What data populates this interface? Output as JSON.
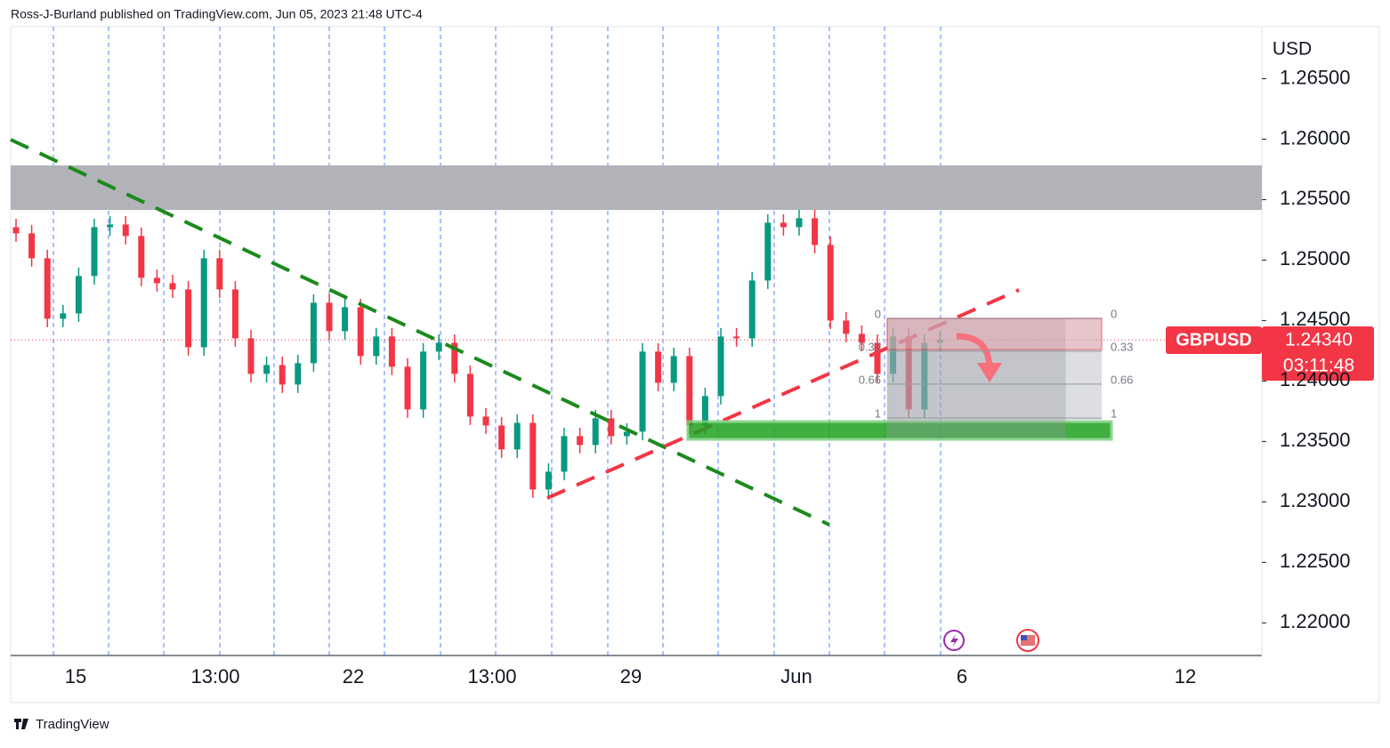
{
  "header": "Ross-J-Burland published on TradingView.com, Jun 05, 2023 21:48 UTC-4",
  "footer": "TradingView",
  "chart_data": {
    "type": "candlestick",
    "currency": "USD",
    "symbol": "GBPUSD",
    "up_color": "#089981",
    "down_color": "#f23645",
    "ylim": [
      1.2173,
      1.2693
    ],
    "yticks": [
      {
        "value": 1.22,
        "label": "1.22000"
      },
      {
        "value": 1.225,
        "label": "1.22500"
      },
      {
        "value": 1.23,
        "label": "1.23000"
      },
      {
        "value": 1.235,
        "label": "1.23500"
      },
      {
        "value": 1.24,
        "label": "1.24000"
      },
      {
        "value": 1.245,
        "label": "1.24500"
      },
      {
        "value": 1.25,
        "label": "1.25000"
      },
      {
        "value": 1.255,
        "label": "1.25500"
      },
      {
        "value": 1.26,
        "label": "1.26000"
      },
      {
        "value": 1.265,
        "label": "1.26500"
      }
    ],
    "x_labels": [
      "15",
      "13:00",
      "22",
      "13:00",
      "29",
      "Jun",
      "6",
      "12"
    ],
    "open": [
      1.25272,
      1.25221,
      1.25015,
      1.24515,
      1.24559,
      1.24868,
      1.25272,
      1.25294,
      1.25199,
      1.24853,
      1.24809,
      1.24757,
      1.24279,
      1.25015,
      1.24757,
      1.24353,
      1.24059,
      1.24132,
      1.23971,
      1.24147,
      1.24647,
      1.24412,
      1.2461,
      1.24206,
      1.24368,
      1.24118,
      1.23765,
      1.24243,
      1.24316,
      1.24059,
      1.23706,
      1.23632,
      1.23434,
      1.23654,
      1.23103,
      1.2325,
      1.23544,
      1.23471,
      1.23691,
      1.23544,
      1.23581,
      1.24243,
      1.23985,
      1.24206,
      1.23632,
      1.23875,
      1.24368,
      1.24353,
      1.24831,
      1.25309,
      1.25272,
      1.25346,
      1.25125,
      1.245,
      1.2439,
      1.24316,
      1.24059,
      1.24368,
      1.23765,
      1.24316
    ],
    "high": [
      1.25342,
      1.25291,
      1.25085,
      1.24629,
      1.24938,
      1.25342,
      1.25364,
      1.25364,
      1.25269,
      1.24923,
      1.24879,
      1.24827,
      1.25085,
      1.25085,
      1.24827,
      1.24423,
      1.24202,
      1.24202,
      1.24217,
      1.24717,
      1.24717,
      1.2468,
      1.2468,
      1.24438,
      1.24438,
      1.24188,
      1.24313,
      1.24386,
      1.24386,
      1.24129,
      1.23776,
      1.23702,
      1.23724,
      1.23724,
      1.2332,
      1.23614,
      1.23614,
      1.23761,
      1.23761,
      1.23651,
      1.24313,
      1.24313,
      1.24276,
      1.24276,
      1.23945,
      1.24438,
      1.24438,
      1.24901,
      1.25379,
      1.25379,
      1.25416,
      1.25416,
      1.25195,
      1.2457,
      1.2446,
      1.24386,
      1.24438,
      1.24438,
      1.24386,
      1.2441
    ],
    "low": [
      1.25151,
      1.24945,
      1.24445,
      1.24445,
      1.24489,
      1.24798,
      1.25202,
      1.25129,
      1.24783,
      1.24739,
      1.24687,
      1.24209,
      1.24209,
      1.24687,
      1.24283,
      1.23989,
      1.23989,
      1.23901,
      1.23901,
      1.24077,
      1.24342,
      1.24342,
      1.24136,
      1.24136,
      1.24048,
      1.23695,
      1.23695,
      1.24173,
      1.23989,
      1.23636,
      1.23562,
      1.23364,
      1.23364,
      1.23033,
      1.23033,
      1.2318,
      1.23401,
      1.23401,
      1.23474,
      1.23474,
      1.23511,
      1.23915,
      1.23915,
      1.23562,
      1.23562,
      1.23805,
      1.24283,
      1.24283,
      1.24761,
      1.25202,
      1.25202,
      1.25055,
      1.2443,
      1.2432,
      1.24246,
      1.23989,
      1.23989,
      1.23695,
      1.23695,
      1.24246
    ],
    "close": [
      1.25221,
      1.25015,
      1.24515,
      1.24559,
      1.24868,
      1.25272,
      1.25294,
      1.25199,
      1.24853,
      1.24809,
      1.24757,
      1.24279,
      1.25015,
      1.24757,
      1.24353,
      1.24059,
      1.24132,
      1.23971,
      1.24147,
      1.24647,
      1.24412,
      1.2461,
      1.24206,
      1.24368,
      1.24118,
      1.23765,
      1.24243,
      1.24316,
      1.24059,
      1.23706,
      1.23632,
      1.23434,
      1.23654,
      1.23103,
      1.2325,
      1.23544,
      1.23471,
      1.23691,
      1.23544,
      1.23581,
      1.24243,
      1.23985,
      1.24206,
      1.23632,
      1.23875,
      1.24368,
      1.24353,
      1.24831,
      1.25309,
      1.25272,
      1.25346,
      1.25125,
      1.245,
      1.2439,
      1.24316,
      1.24059,
      1.24368,
      1.23765,
      1.24316,
      1.2434
    ],
    "last_price": {
      "value": 1.2434,
      "label": "1.24340"
    },
    "countdown": "03:11:48",
    "fib_levels": [
      0,
      0.33,
      0.66,
      1
    ]
  }
}
